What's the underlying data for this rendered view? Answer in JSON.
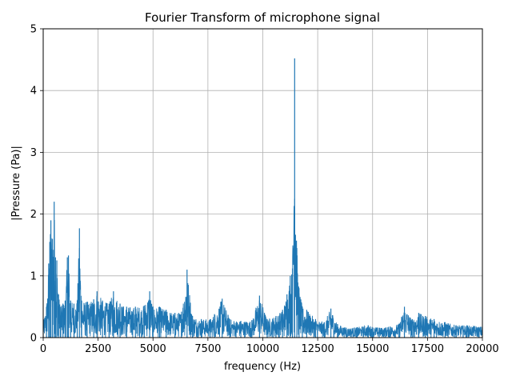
{
  "chart_data": {
    "type": "line",
    "title": "Fourier Transform of microphone signal",
    "xlabel": "frequency (Hz)",
    "ylabel": "|Pressure (Pa)|",
    "xlim": [
      0,
      20000
    ],
    "ylim": [
      0,
      5
    ],
    "x_ticks": [
      0,
      2500,
      5000,
      7500,
      10000,
      12500,
      15000,
      17500,
      20000
    ],
    "x_tick_labels": [
      "0",
      "2500",
      "5000",
      "7500",
      "10000",
      "12500",
      "15000",
      "17500",
      "20000"
    ],
    "y_ticks": [
      0,
      1,
      2,
      3,
      4,
      5
    ],
    "y_tick_labels": [
      "0",
      "1",
      "2",
      "3",
      "4",
      "5"
    ],
    "grid": true,
    "series": [
      {
        "color": "#1f77b4",
        "envelope": [
          [
            0,
            0.25
          ],
          [
            150,
            0.5
          ],
          [
            250,
            1.2
          ],
          [
            300,
            1.55
          ],
          [
            350,
            1.9
          ],
          [
            420,
            1.6
          ],
          [
            500,
            2.2
          ],
          [
            560,
            1.3
          ],
          [
            620,
            1.25
          ],
          [
            700,
            0.7
          ],
          [
            800,
            0.5
          ],
          [
            900,
            0.55
          ],
          [
            1000,
            0.6
          ],
          [
            1100,
            1.3
          ],
          [
            1150,
            1.33
          ],
          [
            1250,
            0.6
          ],
          [
            1400,
            0.55
          ],
          [
            1550,
            0.6
          ],
          [
            1650,
            1.77
          ],
          [
            1750,
            0.6
          ],
          [
            2000,
            0.58
          ],
          [
            2300,
            0.62
          ],
          [
            2450,
            0.75
          ],
          [
            2700,
            0.6
          ],
          [
            3000,
            0.55
          ],
          [
            3200,
            0.75
          ],
          [
            3500,
            0.55
          ],
          [
            3800,
            0.5
          ],
          [
            4200,
            0.5
          ],
          [
            4600,
            0.52
          ],
          [
            4850,
            0.75
          ],
          [
            5000,
            0.5
          ],
          [
            5300,
            0.5
          ],
          [
            5600,
            0.45
          ],
          [
            6000,
            0.4
          ],
          [
            6300,
            0.42
          ],
          [
            6550,
            1.1
          ],
          [
            6800,
            0.35
          ],
          [
            7200,
            0.3
          ],
          [
            7600,
            0.3
          ],
          [
            7800,
            0.38
          ],
          [
            8150,
            0.63
          ],
          [
            8500,
            0.3
          ],
          [
            9000,
            0.27
          ],
          [
            9500,
            0.28
          ],
          [
            9850,
            0.68
          ],
          [
            10200,
            0.3
          ],
          [
            10600,
            0.35
          ],
          [
            10900,
            0.45
          ],
          [
            11100,
            0.7
          ],
          [
            11250,
            1.0
          ],
          [
            11350,
            1.12
          ],
          [
            11450,
            4.52
          ],
          [
            11550,
            1.45
          ],
          [
            11650,
            0.8
          ],
          [
            11800,
            0.5
          ],
          [
            12000,
            0.45
          ],
          [
            12400,
            0.3
          ],
          [
            12800,
            0.25
          ],
          [
            13100,
            0.47
          ],
          [
            13400,
            0.22
          ],
          [
            13800,
            0.16
          ],
          [
            14300,
            0.17
          ],
          [
            14800,
            0.2
          ],
          [
            15300,
            0.16
          ],
          [
            15800,
            0.18
          ],
          [
            16200,
            0.22
          ],
          [
            16450,
            0.5
          ],
          [
            16800,
            0.3
          ],
          [
            17100,
            0.4
          ],
          [
            17400,
            0.35
          ],
          [
            17800,
            0.3
          ],
          [
            18300,
            0.25
          ],
          [
            18800,
            0.2
          ],
          [
            19300,
            0.2
          ],
          [
            20000,
            0.18
          ]
        ]
      }
    ]
  }
}
